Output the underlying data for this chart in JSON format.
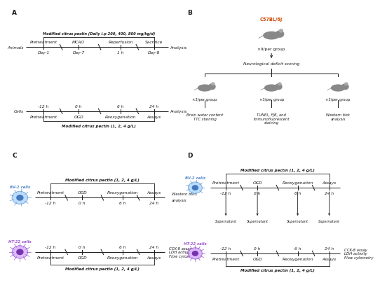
{
  "panel_A_label": "A",
  "panel_B_label": "B",
  "panel_C_label": "C",
  "panel_D_label": "D",
  "bg_color": "#ffffff",
  "line_color": "#1a1a1a",
  "text_color": "#1a1a1a",
  "orange_color": "#cc4400",
  "blue_cell_color": "#5588cc",
  "purple_cell_color": "#9955cc",
  "A_mcp_title": "Modified citrus pectin (Daily i.p 200, 400, 800 mg/kg/d)",
  "A_animals_label": "Animals",
  "A_cells_label": "Cells",
  "A_analysis": "Analysis",
  "A_pretreatment": "Pretreatment",
  "A_MCAO": "MCAO",
  "A_Reperfusion": "Reperfusion",
  "A_Sacrifice": "Sacrifice",
  "A_Day1": "Day-1",
  "A_Day7": "Day-7",
  "A_1h": "1 h",
  "A_Day8": "Day-8",
  "A_minus12h": "-12 h",
  "A_0h": "0 h",
  "A_6h": "6 h",
  "A_24h": "24 h",
  "A_OGD": "OGD",
  "A_Reoxygenation": "Reoxygenation",
  "A_Assays": "Assays",
  "A_mcp_bottom": "Modified citrus pectin (1, 2, 4 g/L)",
  "B_C57": "C57BL/6J",
  "B_9per": "×9/per group",
  "B_neuro": "Neurological deficit scoring",
  "B_3per": "×3/per group",
  "B_brain": "Brain water content\nTTC staining",
  "B_tunel": "TUNEL, FJB, and\nImmunofluorescent\nstaining",
  "B_western": "Western blot\nanalysis",
  "C_mcp_top": "Modified citrus pectin (1, 2, 4 g/L)",
  "C_BV2": "BV-2 cells",
  "C_HT22": "HT-22 cells",
  "C_Pretreatment": "Pretreatment",
  "C_OGD": "OGD",
  "C_Reoxy": "Reoxygenation",
  "C_Assays": "Assays",
  "C_western": "Western blot\nanalysis",
  "C_minus12h": "-12 h",
  "C_0h": "0 h",
  "C_6h": "6 h",
  "C_24h": "24 h",
  "C_CCK8": "CCK-8 assay",
  "C_LDH": "LDH activity",
  "C_Flow": "Flow cytometry",
  "C_mcp_bottom": "Modified citrus pectin (1, 2, 4 g/L)",
  "D_mcp_top": "Modified citrus pectin (1, 2, 4 g/L)",
  "D_BV2": "BV-2 cells",
  "D_HT22": "HT-22 cells",
  "D_Pretreatment": "Pretreatment",
  "D_OGD": "OGD",
  "D_Reoxy": "Reoxygenation",
  "D_Assays": "Assays",
  "D_Supernatant": "Supernatant",
  "D_CCK8": "CCK-8 assay",
  "D_LDH": "LDH activity",
  "D_Flow": "Flow cytometry",
  "D_mcp_bottom": "Modified citrus pectin (1, 2, 4 g/L)",
  "D_minus12h": "-12 h",
  "D_0h": "0 h",
  "D_6h": "6 h",
  "D_24h": "24 h"
}
